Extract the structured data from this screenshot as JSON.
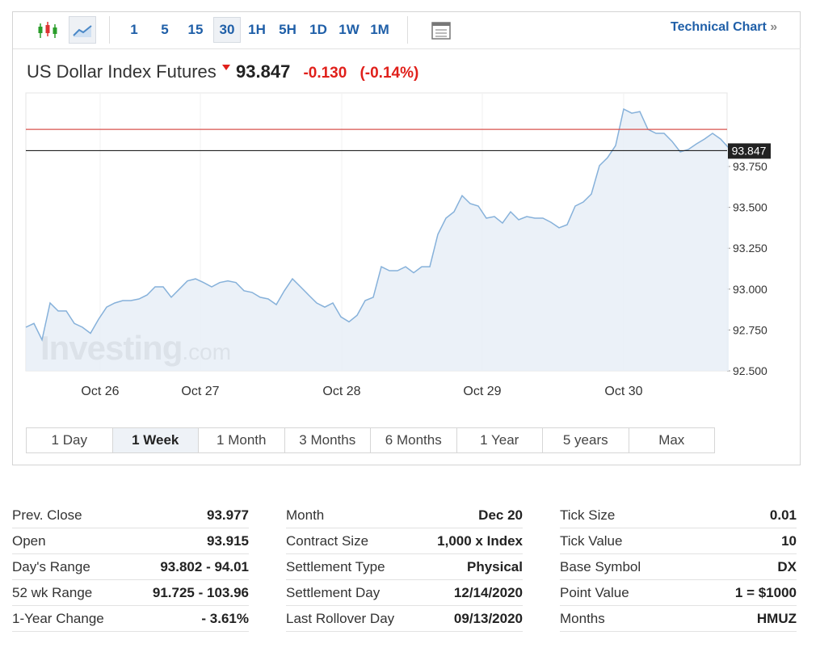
{
  "toolbar": {
    "intervals": [
      "1",
      "5",
      "15",
      "30",
      "1H",
      "5H",
      "1D",
      "1W",
      "1M"
    ],
    "active_interval": "30",
    "link": "Technical Chart"
  },
  "header": {
    "name": "US Dollar Index Futures",
    "price": "93.847",
    "change": "-0.130",
    "change_percent": "(-0.14%)"
  },
  "watermark": {
    "brand": "Investing",
    "suffix": ".com"
  },
  "chart_data": {
    "type": "area",
    "color": "#86b1da",
    "fill": "#e7eef7",
    "x": [
      0,
      1,
      2,
      3,
      4,
      5,
      6,
      7,
      8,
      9,
      10,
      11,
      12,
      13,
      14,
      15,
      16,
      17,
      18,
      19,
      20,
      21,
      22,
      23,
      24,
      25,
      26,
      27,
      28,
      29,
      30,
      31,
      32,
      33,
      34,
      35,
      36,
      37,
      38,
      39,
      40,
      41,
      42,
      43,
      44,
      45,
      46,
      47,
      48,
      49,
      50,
      51,
      52,
      53,
      54,
      55,
      56,
      57,
      58,
      59,
      60,
      61,
      62,
      63,
      64,
      65,
      66,
      67,
      68,
      69,
      70,
      71,
      72,
      73,
      74,
      75,
      76,
      77,
      78,
      79,
      80,
      81,
      82,
      83,
      84,
      85,
      86,
      87
    ],
    "values": [
      92.767,
      92.79,
      92.69,
      92.915,
      92.866,
      92.866,
      92.79,
      92.767,
      92.73,
      92.816,
      92.89,
      92.915,
      92.93,
      92.93,
      92.94,
      92.964,
      93.014,
      93.014,
      92.95,
      93.0,
      93.05,
      93.063,
      93.04,
      93.014,
      93.04,
      93.05,
      93.04,
      92.99,
      92.98,
      92.95,
      92.94,
      92.905,
      92.99,
      93.063,
      93.014,
      92.964,
      92.915,
      92.89,
      92.915,
      92.83,
      92.8,
      92.84,
      92.93,
      92.95,
      93.137,
      93.113,
      93.113,
      93.137,
      93.1,
      93.137,
      93.137,
      93.335,
      93.434,
      93.473,
      93.572,
      93.523,
      93.508,
      93.434,
      93.444,
      93.404,
      93.473,
      93.424,
      93.444,
      93.434,
      93.434,
      93.409,
      93.375,
      93.394,
      93.508,
      93.533,
      93.582,
      93.755,
      93.804,
      93.878,
      94.101,
      94.076,
      94.086,
      93.977,
      93.953,
      93.953,
      93.903,
      93.839,
      93.854,
      93.888,
      93.918,
      93.953,
      93.918,
      93.864
    ],
    "xlim": [
      0,
      87
    ],
    "xticks": [
      {
        "value": 9.2,
        "label": "Oct 26"
      },
      {
        "value": 21.6,
        "label": "Oct 27"
      },
      {
        "value": 39.1,
        "label": "Oct 28"
      },
      {
        "value": 56.5,
        "label": "Oct 29"
      },
      {
        "value": 74,
        "label": "Oct 30"
      }
    ],
    "ylim": [
      92.5,
      94.2
    ],
    "yticks": [
      {
        "value": 92.5,
        "label": "92.500"
      },
      {
        "value": 92.75,
        "label": "92.750"
      },
      {
        "value": 93.0,
        "label": "93.000"
      },
      {
        "value": 93.25,
        "label": "93.250"
      },
      {
        "value": 93.5,
        "label": "93.500"
      },
      {
        "value": 93.75,
        "label": "93.750"
      }
    ],
    "reference_lines": [
      {
        "value": 93.977,
        "color": "#d9534f"
      },
      {
        "value": 93.847,
        "color": "#222222",
        "label": "93.847"
      }
    ]
  },
  "ranges": {
    "items": [
      "1 Day",
      "1 Week",
      "1 Month",
      "3 Months",
      "6 Months",
      "1 Year",
      "5 years",
      "Max"
    ],
    "active": "1 Week"
  },
  "stats": [
    [
      [
        "Prev. Close",
        "93.977"
      ],
      [
        "Open",
        "93.915"
      ],
      [
        "Day's Range",
        "93.802 - 94.01"
      ],
      [
        "52 wk Range",
        "91.725 - 103.96"
      ],
      [
        "1-Year Change",
        "- 3.61%"
      ]
    ],
    [
      [
        "Month",
        "Dec 20"
      ],
      [
        "Contract Size",
        "1,000 x Index"
      ],
      [
        "Settlement Type",
        "Physical"
      ],
      [
        "Settlement Day",
        "12/14/2020"
      ],
      [
        "Last Rollover Day",
        "09/13/2020"
      ]
    ],
    [
      [
        "Tick Size",
        "0.01"
      ],
      [
        "Tick Value",
        "10"
      ],
      [
        "Base Symbol",
        "DX"
      ],
      [
        "Point Value",
        "1 = $1000"
      ],
      [
        "Months",
        "HMUZ"
      ]
    ]
  ]
}
